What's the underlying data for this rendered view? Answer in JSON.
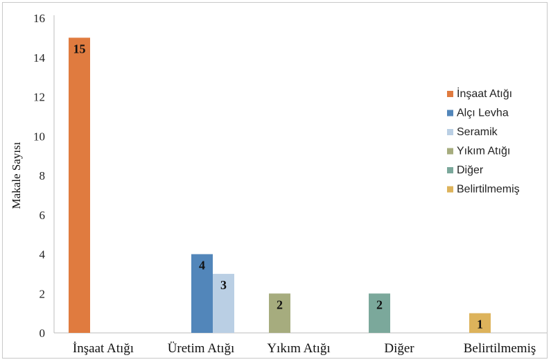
{
  "chart_data": {
    "type": "bar",
    "ylabel": "Makale Sayısı",
    "ylim": [
      0,
      16
    ],
    "yticks": [
      "0",
      "2",
      "4",
      "6",
      "8",
      "10",
      "12",
      "14",
      "16"
    ],
    "grid": false,
    "legend_position": "right",
    "categories": [
      "İnşaat Atığı",
      "Üretim Atığı",
      "Yıkım Atığı",
      "Diğer",
      "Belirtilmemiş"
    ],
    "series": [
      {
        "name": "İnşaat Atığı",
        "color": "#E07B3F",
        "values": [
          15,
          null,
          null,
          null,
          null
        ]
      },
      {
        "name": "Alçı Levha",
        "color": "#5286BA",
        "values": [
          null,
          4,
          null,
          null,
          null
        ]
      },
      {
        "name": "Seramik",
        "color": "#BACFE4",
        "values": [
          null,
          3,
          null,
          null,
          null
        ]
      },
      {
        "name": "Yıkım Atığı",
        "color": "#A6AC7E",
        "values": [
          null,
          null,
          2,
          null,
          null
        ]
      },
      {
        "name": "Diğer",
        "color": "#7BA89B",
        "values": [
          null,
          null,
          null,
          2,
          null
        ]
      },
      {
        "name": "Belirtilmemiş",
        "color": "#DDB35B",
        "values": [
          null,
          null,
          null,
          null,
          1
        ]
      }
    ],
    "data_labels": [
      "15",
      "4",
      "3",
      "2",
      "2",
      "1"
    ]
  }
}
